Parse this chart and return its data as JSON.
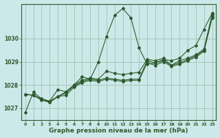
{
  "background_color": "#cce8e8",
  "plot_bg_color": "#cce8e8",
  "line_color": "#2d5a2d",
  "grid_color": "#99bbaa",
  "xlabel": "Graphe pression niveau de la mer (hPa)",
  "xlabel_fontsize": 6.5,
  "ylim": [
    1026.5,
    1031.5
  ],
  "xlim": [
    -0.5,
    23.5
  ],
  "yticks": [
    1027,
    1028,
    1029,
    1030
  ],
  "xticks": [
    0,
    1,
    2,
    3,
    4,
    5,
    6,
    7,
    8,
    9,
    10,
    11,
    12,
    13,
    14,
    15,
    16,
    17,
    18,
    19,
    20,
    21,
    22,
    23
  ],
  "series": [
    [
      1026.8,
      1027.7,
      1027.4,
      1027.3,
      1027.8,
      1027.7,
      1028.0,
      1028.35,
      1028.25,
      1029.0,
      1030.1,
      1031.0,
      1031.3,
      1030.9,
      1029.6,
      1028.9,
      1028.95,
      1029.1,
      1029.05,
      1029.15,
      1029.5,
      1029.7,
      1030.4,
      1031.1
    ],
    [
      1027.6,
      1027.55,
      1027.4,
      1027.3,
      1027.5,
      1027.7,
      1028.0,
      1028.2,
      1028.3,
      1028.25,
      1028.6,
      1028.5,
      1028.45,
      1028.5,
      1028.55,
      1029.1,
      1029.05,
      1029.15,
      1028.85,
      1029.05,
      1029.15,
      1029.3,
      1029.55,
      1031.05
    ],
    [
      1027.6,
      1027.55,
      1027.4,
      1027.25,
      1027.5,
      1027.65,
      1027.95,
      1028.15,
      1028.25,
      1028.2,
      1028.3,
      1028.25,
      1028.2,
      1028.25,
      1028.25,
      1029.05,
      1028.95,
      1029.05,
      1028.85,
      1028.95,
      1029.1,
      1029.25,
      1029.5,
      1030.95
    ],
    [
      1027.6,
      1027.55,
      1027.35,
      1027.25,
      1027.5,
      1027.55,
      1027.9,
      1028.1,
      1028.2,
      1028.15,
      1028.25,
      1028.2,
      1028.15,
      1028.2,
      1028.2,
      1028.95,
      1028.85,
      1029.0,
      1028.8,
      1028.9,
      1029.05,
      1029.2,
      1029.45,
      1030.9
    ]
  ]
}
